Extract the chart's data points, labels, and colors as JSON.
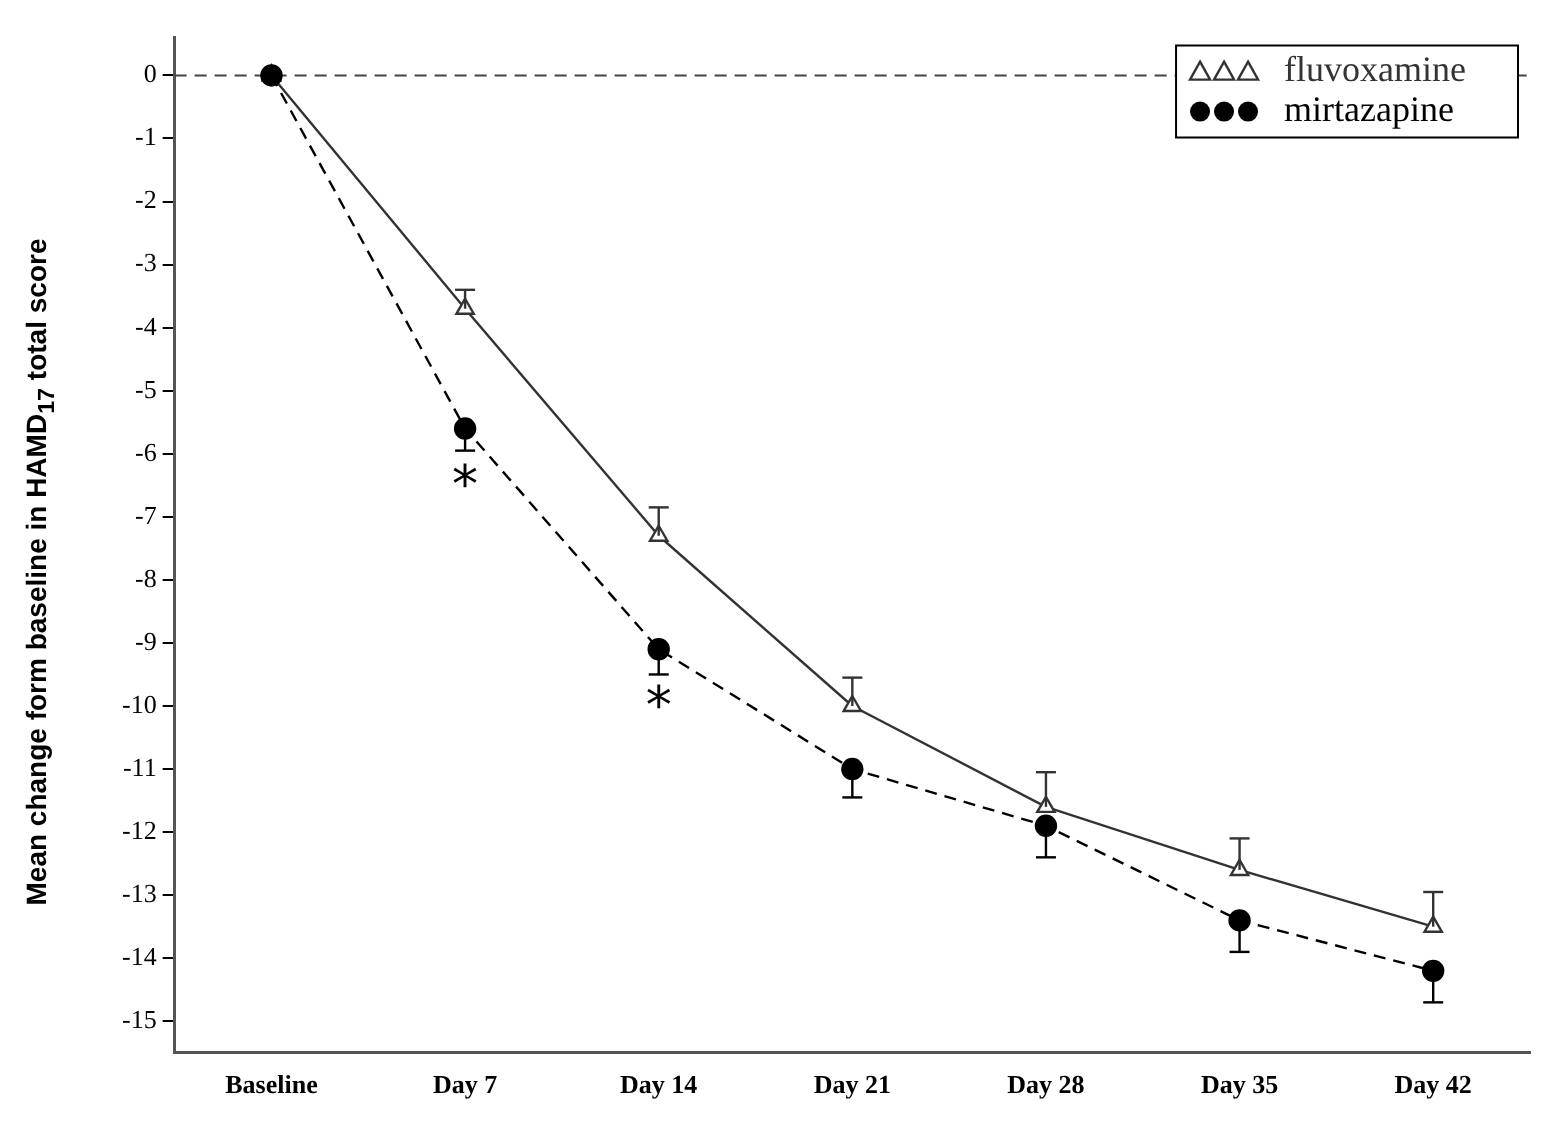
{
  "chart_data": {
    "type": "line",
    "ylabel": "Mean change form baseline in HAMD$_{17}$ total score",
    "categories": [
      "Baseline",
      "Day 7",
      "Day 14",
      "Day 21",
      "Day 28",
      "Day 35",
      "Day 42"
    ],
    "series": [
      {
        "name": "fluvoxamine",
        "color": "#333333",
        "marker": "triangle",
        "line_style": "solid",
        "values": [
          0,
          -3.7,
          -7.3,
          -10.0,
          -11.6,
          -12.6,
          -13.5
        ],
        "errors": [
          null,
          [
            -3.7,
            -3.4
          ],
          [
            -7.3,
            -6.85
          ],
          [
            -10.0,
            -9.55
          ],
          [
            -11.6,
            -11.05
          ],
          [
            -12.6,
            -12.1
          ],
          [
            -13.5,
            -12.95
          ]
        ]
      },
      {
        "name": "mirtazapine",
        "color": "#000000",
        "marker": "circle",
        "line_style": "dashed",
        "values": [
          0,
          -5.6,
          -9.1,
          -11.0,
          -11.9,
          -13.4,
          -14.2
        ],
        "errors": [
          null,
          [
            -5.95,
            -5.6
          ],
          [
            -9.5,
            -9.1
          ],
          [
            -11.45,
            -11.0
          ],
          [
            -12.4,
            -11.9
          ],
          [
            -13.9,
            -13.4
          ],
          [
            -14.7,
            -14.2
          ]
        ]
      }
    ],
    "ylim": [
      -15.5,
      0.6
    ],
    "yticks": [
      0,
      -1,
      -2,
      -3,
      -4,
      -5,
      -6,
      -7,
      -8,
      -9,
      -10,
      -11,
      -12,
      -13,
      -14,
      -15
    ],
    "ref_lines": [
      {
        "axis": "y",
        "value": 0,
        "line_style": "dashed",
        "color": "#444444"
      }
    ],
    "annotations": [
      {
        "text": "*",
        "x": "Day 7",
        "y": -5.6
      },
      {
        "text": "*",
        "x": "Day 14",
        "y": -9.1
      }
    ],
    "legend": "top right",
    "grid": false
  }
}
